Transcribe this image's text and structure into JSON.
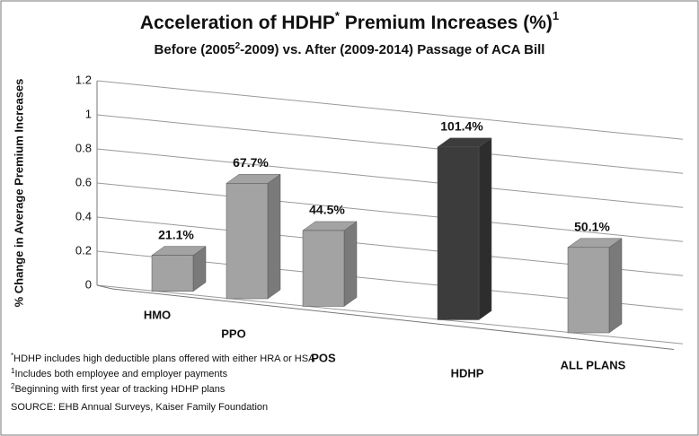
{
  "chart_data": {
    "type": "bar3d",
    "title": [
      "Acceleration of HDHP",
      "*",
      " Premium Increases (%)",
      "1"
    ],
    "subtitle": [
      "Before (2005",
      "2",
      "-2009) vs. After (2009-2014) Passage of ACA Bill"
    ],
    "y_label": "% Change in Average Premium Increases",
    "categories": [
      "HMO",
      "PPO",
      "POS",
      "HDHP",
      "ALL PLANS"
    ],
    "values": [
      0.211,
      0.677,
      0.445,
      1.014,
      0.501
    ],
    "value_labels": [
      "21.1%",
      "67.7%",
      "44.5%",
      "101.4%",
      "50.1%"
    ],
    "colors": [
      "#a3a3a3",
      "#a3a3a3",
      "#a3a3a3",
      "#3c3c3c",
      "#a3a3a3"
    ],
    "ylim": [
      0,
      1.2
    ],
    "yticks": [
      0,
      0.2,
      0.4,
      0.6,
      0.8,
      1,
      1.2
    ],
    "grid": true,
    "footnotes": [
      {
        "mark": "*",
        "text": "HDHP includes high deductible plans offered with either HRA or HSA"
      },
      {
        "mark": "1",
        "text": "Includes  both employee and employer payments"
      },
      {
        "mark": "2",
        "text": "Beginning with first year of tracking HDHP plans"
      },
      {
        "mark": "",
        "text": "SOURCE: EHB Annual Surveys, Kaiser Family Foundation"
      }
    ]
  }
}
